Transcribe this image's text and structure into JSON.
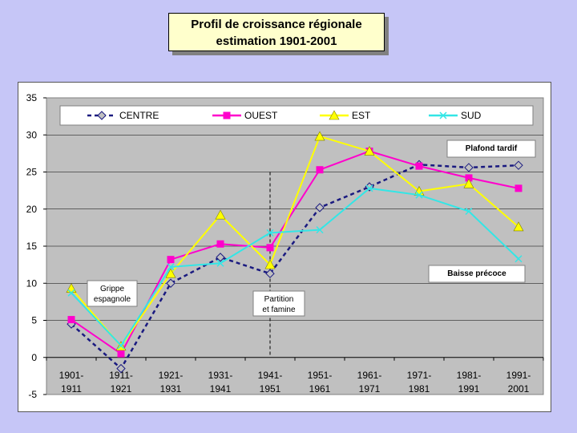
{
  "title": {
    "line1": "Profil de croissance régionale",
    "line2": "estimation 1901-2001"
  },
  "chart_data": {
    "type": "line",
    "categories": [
      [
        "1901-",
        "1911"
      ],
      [
        "1911-",
        "1921"
      ],
      [
        "1921-",
        "1931"
      ],
      [
        "1931-",
        "1941"
      ],
      [
        "1941-",
        "1951"
      ],
      [
        "1951-",
        "1961"
      ],
      [
        "1961-",
        "1971"
      ],
      [
        "1971-",
        "1981"
      ],
      [
        "1981-",
        "1991"
      ],
      [
        "1991-",
        "2001"
      ]
    ],
    "ylim": [
      -5,
      35
    ],
    "yticks": [
      "35",
      "30",
      "25",
      "20",
      "15",
      "10",
      "5",
      "0",
      "-5"
    ],
    "grid": true,
    "legend_position": "top",
    "series": [
      {
        "name": "CENTRE",
        "color": "#1a1a80",
        "marker": "diamond",
        "dash": true,
        "values": [
          4.5,
          -1.5,
          10.0,
          13.5,
          11.3,
          20.2,
          23.0,
          26.0,
          25.6,
          25.9
        ]
      },
      {
        "name": "OUEST",
        "color": "#ff00cc",
        "marker": "square",
        "dash": false,
        "values": [
          5.1,
          0.5,
          13.2,
          15.3,
          14.8,
          25.3,
          27.8,
          25.8,
          24.2,
          22.8
        ]
      },
      {
        "name": "EST",
        "color": "#ffff00",
        "marker": "triangle",
        "dash": false,
        "values": [
          9.3,
          1.5,
          11.3,
          19.2,
          12.5,
          29.8,
          27.8,
          22.4,
          23.4,
          17.6
        ]
      },
      {
        "name": "SUD",
        "color": "#33e6e6",
        "marker": "x",
        "dash": false,
        "values": [
          8.7,
          1.6,
          12.2,
          12.7,
          16.8,
          17.2,
          22.8,
          21.9,
          19.7,
          13.3
        ]
      }
    ],
    "annotations": {
      "grippe": [
        "Grippe",
        "espagnole"
      ],
      "partition": [
        "Partition",
        "et famine"
      ],
      "plafond": "Plafond tardif",
      "baisse": "Baisse précoce"
    }
  }
}
